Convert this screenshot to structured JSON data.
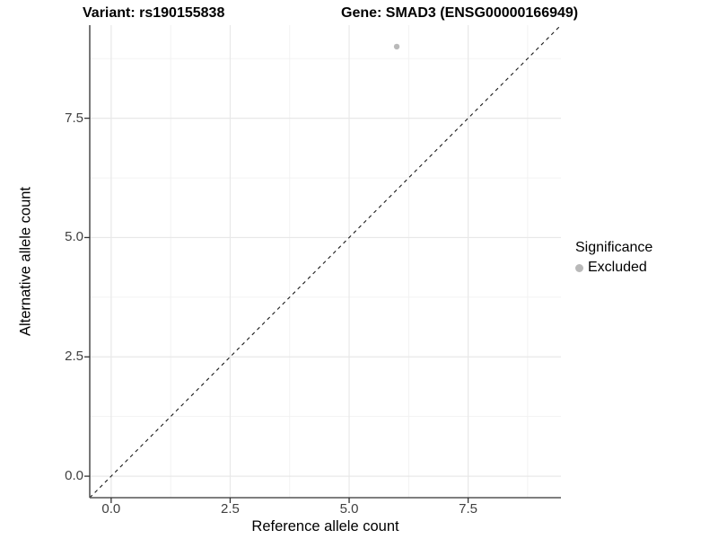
{
  "title": {
    "variant": "Variant: rs190155838",
    "gene": "Gene: SMAD3 (ENSG00000166949)"
  },
  "chart_data": {
    "type": "scatter",
    "title": "Variant: rs190155838  |  Gene: SMAD3 (ENSG00000166949)",
    "xlabel": "Reference allele count",
    "ylabel": "Alternative allele count",
    "xlim": [
      -0.45,
      9.45
    ],
    "ylim": [
      -0.45,
      9.45
    ],
    "xticks": [
      0,
      2.5,
      5,
      7.5
    ],
    "yticks": [
      0,
      2.5,
      5,
      7.5
    ],
    "xtick_labels": [
      "0.0",
      "2.5",
      "5.0",
      "7.5"
    ],
    "ytick_labels": [
      "0.0",
      "2.5",
      "5.0",
      "7.5"
    ],
    "minor_ticks": [
      1.25,
      3.75,
      6.25,
      8.75
    ],
    "grid": "major+minor",
    "points": [
      {
        "x": 6,
        "y": 9,
        "series": "Excluded"
      }
    ],
    "reference_line": {
      "type": "abline",
      "slope": 1,
      "intercept": 0,
      "style": "dashed"
    },
    "legend": {
      "position": "right",
      "title": "Significance",
      "items": [
        {
          "label": "Excluded",
          "color": "#b9b9b9"
        }
      ]
    },
    "colors": {
      "point": "#b9b9b9",
      "axis_line": "#555555",
      "tick_mark": "#333333",
      "tick_label": "#404040",
      "grid_major": "#e8e8e8",
      "grid_minor": "#f1f1f1",
      "reference_line": "#1a1a1a",
      "background": "#ffffff"
    }
  }
}
